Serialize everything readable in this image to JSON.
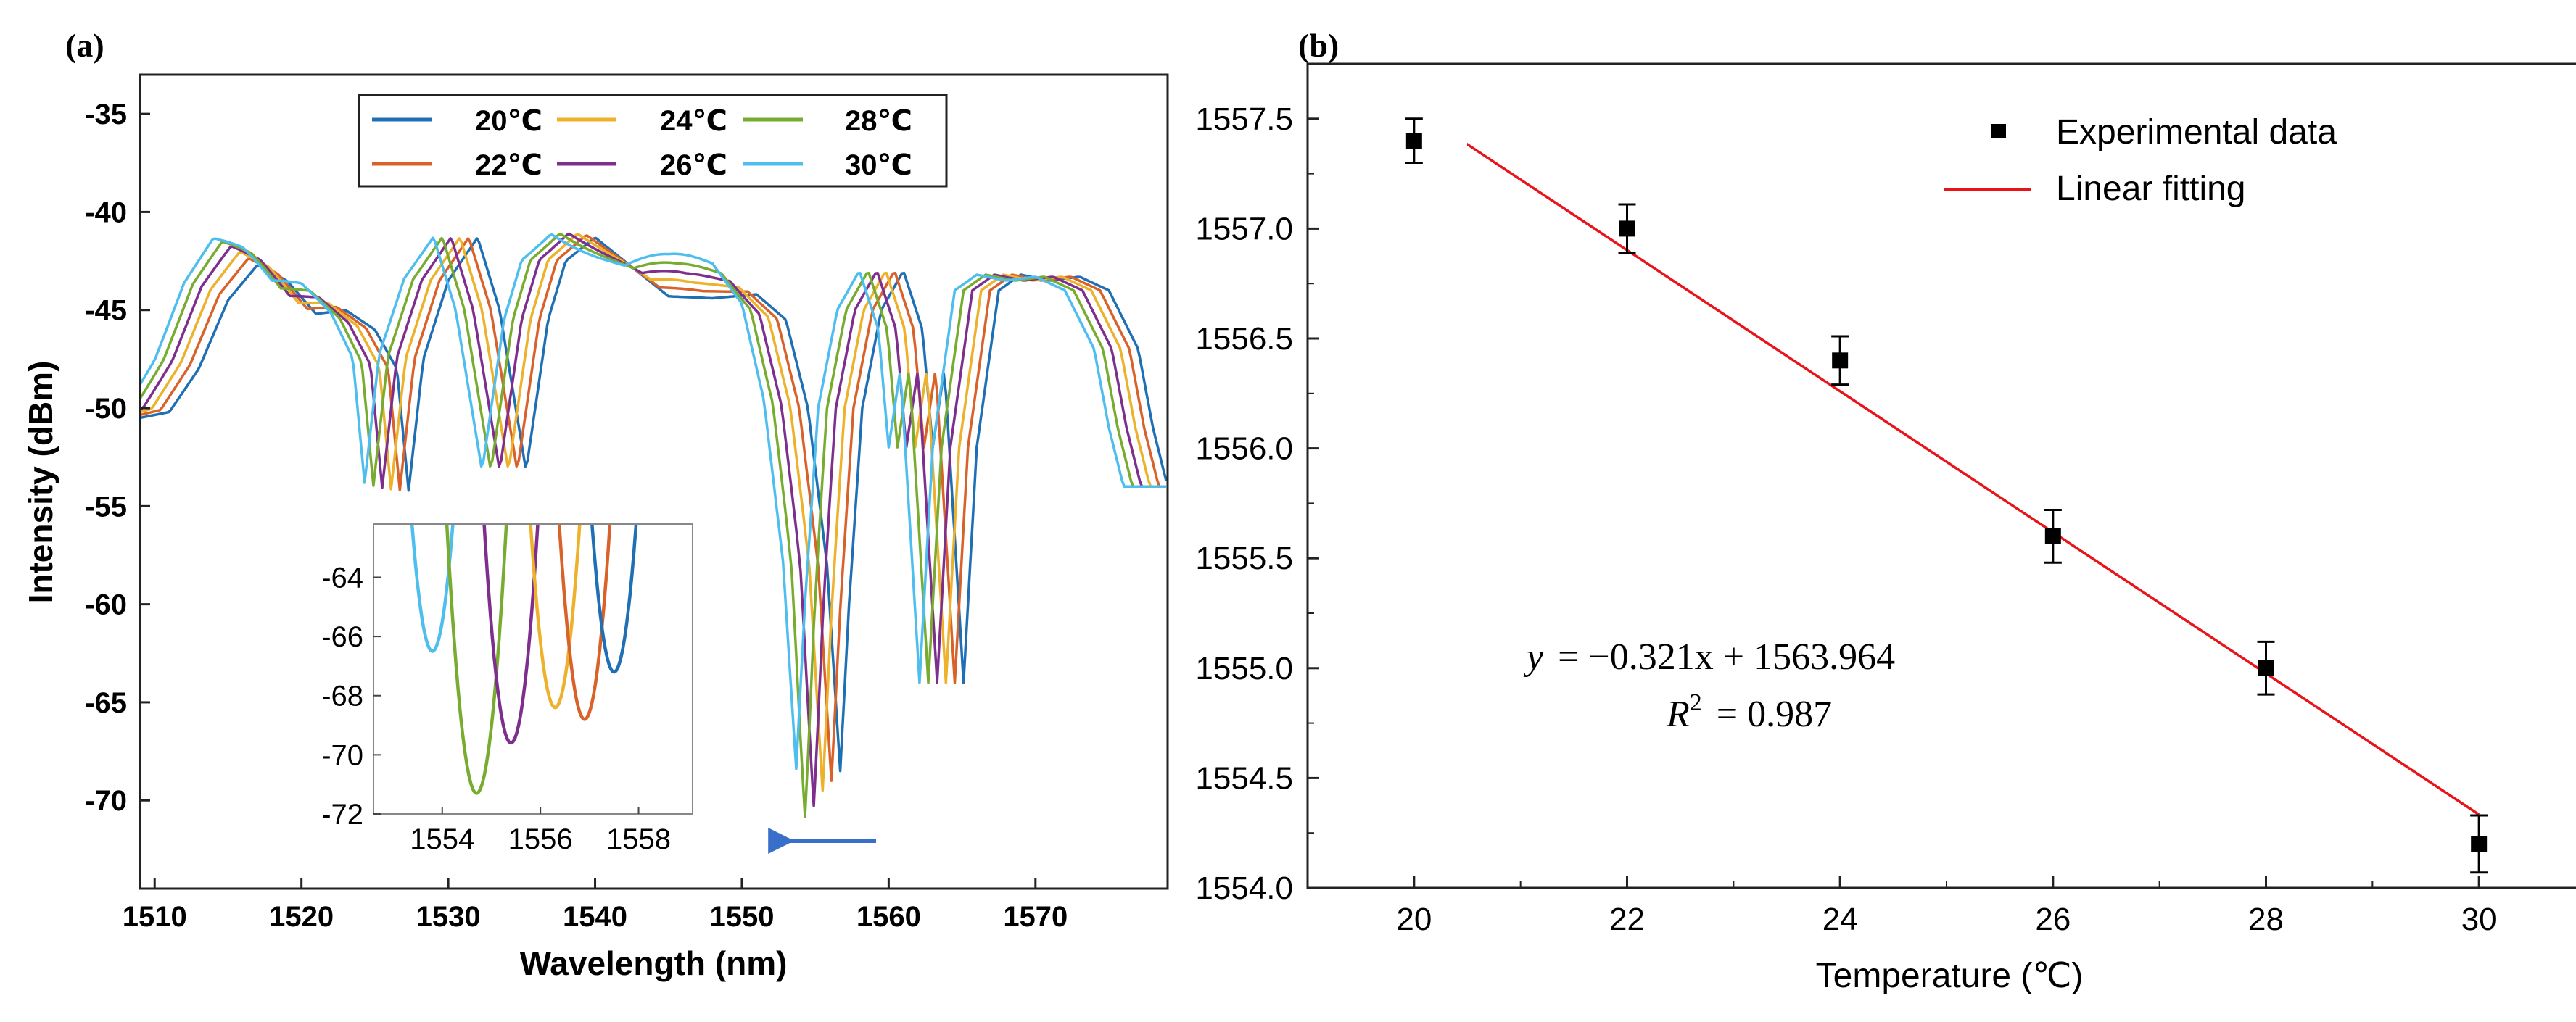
{
  "chart_data": [
    {
      "panel_label": "(a)",
      "type": "line",
      "title": "",
      "xlabel": "Wavelength (nm)",
      "ylabel": "Intensity (dBm)",
      "xlim": [
        1509,
        1579
      ],
      "ylim": [
        -74.5,
        -33
      ],
      "x_ticks": [
        1510,
        1520,
        1530,
        1540,
        1550,
        1560,
        1570
      ],
      "y_ticks": [
        -35,
        -40,
        -45,
        -50,
        -55,
        -60,
        -65,
        -70
      ],
      "legend": {
        "placement": "top",
        "entries": [
          "20℃",
          "24℃",
          "28℃",
          "22℃",
          "26℃",
          "30℃"
        ]
      },
      "annotations": [
        "arrow pointing left near 1551-1559 nm at -71 dBm (blue shift with increasing temperature)"
      ],
      "series": [
        {
          "name": "20℃",
          "color": "#1f6fb4",
          "shift": 0.0,
          "dip_depth": 0
        },
        {
          "name": "22℃",
          "color": "#d9622b",
          "shift": -0.6,
          "dip_depth": -0.5
        },
        {
          "name": "24℃",
          "color": "#eeb12b",
          "shift": -1.2,
          "dip_depth": -1.0
        },
        {
          "name": "26℃",
          "color": "#7e2f8e",
          "shift": -1.8,
          "dip_depth": -1.8
        },
        {
          "name": "28℃",
          "color": "#77ac30",
          "shift": -2.4,
          "dip_depth": -2.4
        },
        {
          "name": "30℃",
          "color": "#4dbeee",
          "shift": -3.0,
          "dip_depth": 0.0
        }
      ],
      "base_spectrum_20C": {
        "x": [
          1509,
          1511,
          1513,
          1515,
          1517,
          1519,
          1521,
          1523,
          1525,
          1526.5,
          1527.3,
          1528.3,
          1530,
          1532,
          1533.5,
          1535.3,
          1536.8,
          1538,
          1540,
          1542,
          1545,
          1548,
          1551,
          1553,
          1554.5,
          1555.8,
          1556.7,
          1557.3,
          1558.2,
          1559.5,
          1561,
          1562.3,
          1563,
          1563.8,
          1565.1,
          1566,
          1567.5,
          1569,
          1571,
          1573,
          1575,
          1577,
          1578,
          1579
        ],
        "y": [
          -50.5,
          -50.2,
          -48.0,
          -44.5,
          -42.7,
          -43.5,
          -45.2,
          -45.0,
          -46.0,
          -48.0,
          -54.2,
          -47.5,
          -43.5,
          -41.3,
          -45.0,
          -53.2,
          -45.5,
          -42.5,
          -41.3,
          -42.5,
          -44.3,
          -44.4,
          -44.2,
          -45.5,
          -50.0,
          -58.0,
          -68.5,
          -60.0,
          -50.0,
          -45.0,
          -43.0,
          -46.0,
          -52.0,
          -48.0,
          -64.0,
          -52.0,
          -44.0,
          -43.2,
          -43.5,
          -43.3,
          -44.0,
          -47.0,
          -51.0,
          -54.0
        ]
      },
      "inset": {
        "xlim": [
          1552.6,
          1559.1
        ],
        "ylim": [
          -72,
          -62.2
        ],
        "x_ticks": [
          1554,
          1556,
          1558
        ],
        "y_ticks": [
          -64,
          -66,
          -68,
          -70,
          -72
        ],
        "dips": [
          {
            "name": "30℃",
            "x": 1553.8,
            "y": -66.5
          },
          {
            "name": "28℃",
            "x": 1554.7,
            "y": -71.3
          },
          {
            "name": "26℃",
            "x": 1555.4,
            "y": -69.6
          },
          {
            "name": "24℃",
            "x": 1556.3,
            "y": -68.4
          },
          {
            "name": "22℃",
            "x": 1556.9,
            "y": -68.8
          },
          {
            "name": "20℃",
            "x": 1557.5,
            "y": -67.2
          }
        ]
      }
    },
    {
      "panel_label": "(b)",
      "type": "scatter",
      "title": "",
      "xlabel": "Temperature (℃)",
      "ylabel": "",
      "xlim": [
        19,
        31
      ],
      "ylim": [
        1554.0,
        1557.75
      ],
      "x_ticks": [
        20,
        22,
        24,
        26,
        28,
        30
      ],
      "y_ticks": [
        "1557.5",
        "1557.0",
        "1556.5",
        "1556.0",
        "1555.5",
        "1555.0",
        "1554.5",
        "1554.0"
      ],
      "points": {
        "x": [
          20,
          22,
          24,
          26,
          28,
          30
        ],
        "y": [
          1557.4,
          1557.0,
          1556.4,
          1555.6,
          1555.0,
          1554.2
        ],
        "err": [
          0.1,
          0.11,
          0.11,
          0.12,
          0.12,
          0.13
        ]
      },
      "fit": {
        "slope": -0.321,
        "intercept": 1563.964,
        "x_range": [
          20,
          30
        ]
      },
      "legend": {
        "placement": "top-right",
        "entries": [
          "Experimental data",
          "Linear fitting"
        ]
      },
      "equation": {
        "lhs": "y",
        "rhs": "= −0.321x + 1563.964",
        "r2_lhs": "R",
        "r2_exp": "2",
        "r2_rhs": "= 0.987"
      }
    }
  ]
}
